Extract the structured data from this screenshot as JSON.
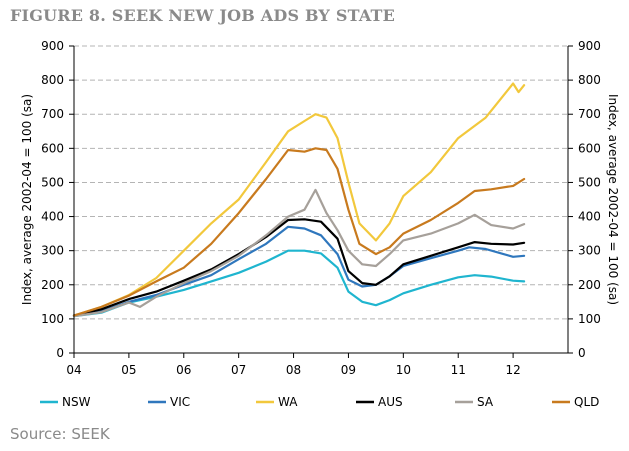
{
  "figure": {
    "title": "FIGURE 8. SEEK NEW JOB ADS BY STATE",
    "source": "Source: SEEK"
  },
  "chart_data": {
    "type": "line",
    "ylabel_left": "Index, average 2002-04 = 100 (sa)",
    "ylabel_right": "Index, average 2002-04 = 100 (sa)",
    "ylim": [
      0,
      900
    ],
    "yticks": [
      0,
      100,
      200,
      300,
      400,
      500,
      600,
      700,
      800,
      900
    ],
    "ytick_labels": [
      "0",
      "100",
      "200",
      "300",
      "400",
      "500",
      "600",
      "700",
      "800",
      "900"
    ],
    "xlim": [
      2004.0,
      2013.0
    ],
    "xticks": [
      2004,
      2005,
      2006,
      2007,
      2008,
      2009,
      2010,
      2011,
      2012
    ],
    "xtick_labels": [
      "04",
      "05",
      "06",
      "07",
      "08",
      "09",
      "10",
      "11",
      "12"
    ],
    "grid": true,
    "legend_position": "bottom",
    "series": [
      {
        "name": "NSW",
        "color": "#1fb5cf",
        "points": [
          [
            2004.0,
            108
          ],
          [
            2004.5,
            118
          ],
          [
            2005.0,
            148
          ],
          [
            2005.5,
            165
          ],
          [
            2006.0,
            185
          ],
          [
            2006.5,
            210
          ],
          [
            2007.0,
            235
          ],
          [
            2007.5,
            268
          ],
          [
            2007.9,
            300
          ],
          [
            2008.2,
            300
          ],
          [
            2008.5,
            292
          ],
          [
            2008.8,
            250
          ],
          [
            2009.0,
            180
          ],
          [
            2009.25,
            150
          ],
          [
            2009.5,
            140
          ],
          [
            2009.75,
            155
          ],
          [
            2010.0,
            175
          ],
          [
            2010.5,
            200
          ],
          [
            2011.0,
            222
          ],
          [
            2011.3,
            228
          ],
          [
            2011.6,
            224
          ],
          [
            2012.0,
            212
          ],
          [
            2012.2,
            210
          ]
        ]
      },
      {
        "name": "VIC",
        "color": "#2f77bd",
        "points": [
          [
            2004.0,
            110
          ],
          [
            2004.5,
            122
          ],
          [
            2005.0,
            150
          ],
          [
            2005.5,
            170
          ],
          [
            2006.0,
            200
          ],
          [
            2006.5,
            228
          ],
          [
            2007.0,
            275
          ],
          [
            2007.5,
            320
          ],
          [
            2007.9,
            370
          ],
          [
            2008.2,
            365
          ],
          [
            2008.5,
            345
          ],
          [
            2008.8,
            290
          ],
          [
            2009.0,
            215
          ],
          [
            2009.25,
            195
          ],
          [
            2009.5,
            200
          ],
          [
            2009.75,
            225
          ],
          [
            2010.0,
            255
          ],
          [
            2010.5,
            278
          ],
          [
            2011.0,
            300
          ],
          [
            2011.2,
            310
          ],
          [
            2011.5,
            305
          ],
          [
            2012.0,
            282
          ],
          [
            2012.2,
            285
          ]
        ]
      },
      {
        "name": "WA",
        "color": "#f2c83c",
        "points": [
          [
            2004.0,
            110
          ],
          [
            2004.5,
            135
          ],
          [
            2005.0,
            170
          ],
          [
            2005.5,
            220
          ],
          [
            2006.0,
            300
          ],
          [
            2006.5,
            380
          ],
          [
            2007.0,
            450
          ],
          [
            2007.5,
            560
          ],
          [
            2007.9,
            650
          ],
          [
            2008.2,
            680
          ],
          [
            2008.4,
            700
          ],
          [
            2008.6,
            690
          ],
          [
            2008.8,
            630
          ],
          [
            2009.0,
            500
          ],
          [
            2009.2,
            380
          ],
          [
            2009.5,
            330
          ],
          [
            2009.75,
            380
          ],
          [
            2010.0,
            460
          ],
          [
            2010.5,
            530
          ],
          [
            2011.0,
            630
          ],
          [
            2011.5,
            690
          ],
          [
            2011.8,
            750
          ],
          [
            2012.0,
            790
          ],
          [
            2012.1,
            765
          ],
          [
            2012.2,
            785
          ]
        ]
      },
      {
        "name": "AUS",
        "color": "#000000",
        "points": [
          [
            2004.0,
            110
          ],
          [
            2004.5,
            128
          ],
          [
            2005.0,
            158
          ],
          [
            2005.5,
            180
          ],
          [
            2006.0,
            212
          ],
          [
            2006.5,
            245
          ],
          [
            2007.0,
            290
          ],
          [
            2007.5,
            340
          ],
          [
            2007.9,
            390
          ],
          [
            2008.2,
            392
          ],
          [
            2008.5,
            385
          ],
          [
            2008.8,
            335
          ],
          [
            2009.0,
            240
          ],
          [
            2009.25,
            205
          ],
          [
            2009.5,
            200
          ],
          [
            2009.75,
            225
          ],
          [
            2010.0,
            260
          ],
          [
            2010.5,
            285
          ],
          [
            2011.0,
            310
          ],
          [
            2011.3,
            325
          ],
          [
            2011.6,
            320
          ],
          [
            2012.0,
            318
          ],
          [
            2012.2,
            323
          ]
        ]
      },
      {
        "name": "SA",
        "color": "#a6a09a",
        "points": [
          [
            2004.0,
            108
          ],
          [
            2004.5,
            120
          ],
          [
            2005.0,
            148
          ],
          [
            2005.2,
            135
          ],
          [
            2005.5,
            165
          ],
          [
            2006.0,
            205
          ],
          [
            2006.5,
            240
          ],
          [
            2007.0,
            285
          ],
          [
            2007.5,
            345
          ],
          [
            2007.9,
            400
          ],
          [
            2008.2,
            420
          ],
          [
            2008.4,
            478
          ],
          [
            2008.6,
            410
          ],
          [
            2008.8,
            360
          ],
          [
            2009.0,
            300
          ],
          [
            2009.25,
            260
          ],
          [
            2009.5,
            255
          ],
          [
            2009.75,
            290
          ],
          [
            2010.0,
            330
          ],
          [
            2010.5,
            350
          ],
          [
            2011.0,
            380
          ],
          [
            2011.3,
            405
          ],
          [
            2011.6,
            375
          ],
          [
            2012.0,
            365
          ],
          [
            2012.2,
            378
          ]
        ]
      },
      {
        "name": "QLD",
        "color": "#c87a1e",
        "points": [
          [
            2004.0,
            110
          ],
          [
            2004.5,
            135
          ],
          [
            2005.0,
            168
          ],
          [
            2005.5,
            210
          ],
          [
            2006.0,
            250
          ],
          [
            2006.5,
            320
          ],
          [
            2007.0,
            410
          ],
          [
            2007.5,
            510
          ],
          [
            2007.9,
            595
          ],
          [
            2008.2,
            590
          ],
          [
            2008.4,
            600
          ],
          [
            2008.6,
            595
          ],
          [
            2008.8,
            540
          ],
          [
            2009.0,
            420
          ],
          [
            2009.2,
            320
          ],
          [
            2009.5,
            290
          ],
          [
            2009.75,
            310
          ],
          [
            2010.0,
            350
          ],
          [
            2010.5,
            390
          ],
          [
            2011.0,
            440
          ],
          [
            2011.3,
            475
          ],
          [
            2011.6,
            480
          ],
          [
            2012.0,
            490
          ],
          [
            2012.2,
            510
          ]
        ]
      }
    ]
  }
}
